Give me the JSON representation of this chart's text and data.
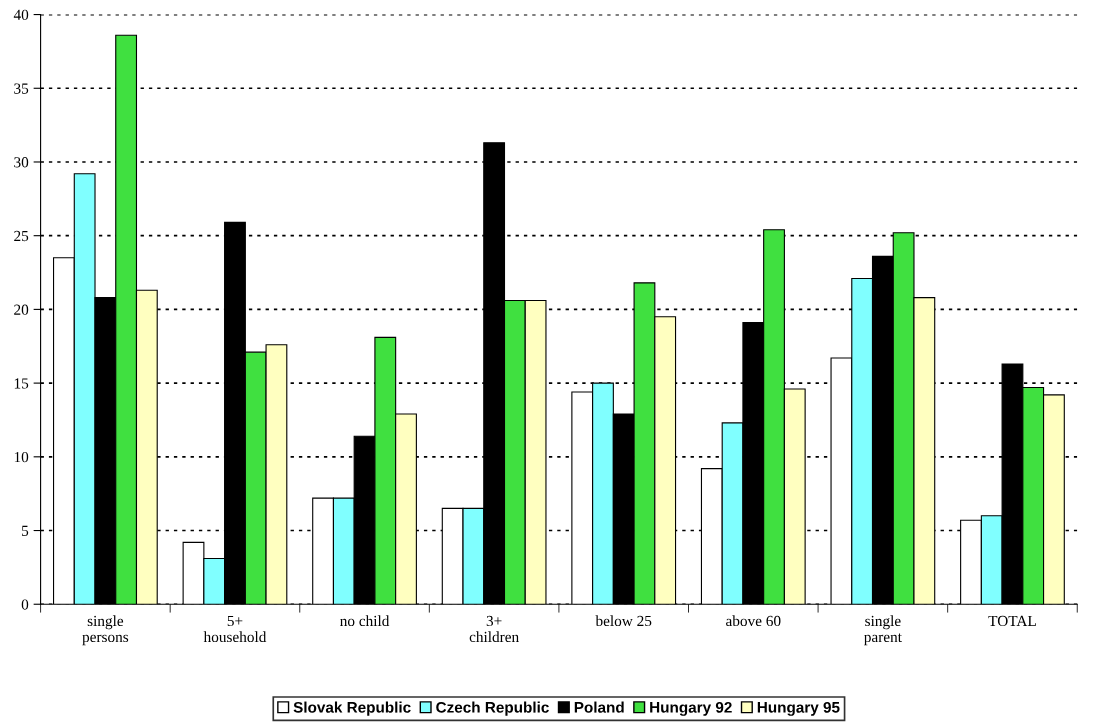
{
  "chart_data": {
    "type": "bar",
    "categories": [
      "single\npersons",
      "5+\nhousehold",
      "no child",
      "3+\nchildren",
      "below 25",
      "above 60",
      "single\nparent",
      "TOTAL"
    ],
    "series": [
      {
        "name": "Slovak Republic",
        "color": "#ffffff",
        "values": [
          23.5,
          4.2,
          7.2,
          6.5,
          14.4,
          9.2,
          16.7,
          5.7
        ]
      },
      {
        "name": "Czech Republic",
        "color": "#80ffff",
        "values": [
          29.2,
          3.1,
          7.2,
          6.5,
          15.0,
          12.3,
          22.1,
          6.0
        ]
      },
      {
        "name": "Poland",
        "color": "#000000",
        "values": [
          20.8,
          25.9,
          11.4,
          31.3,
          12.9,
          19.1,
          23.6,
          16.3
        ]
      },
      {
        "name": "Hungary 92",
        "color": "#40e040",
        "values": [
          38.6,
          17.1,
          18.1,
          20.6,
          21.8,
          25.4,
          25.2,
          14.7
        ]
      },
      {
        "name": "Hungary 95",
        "color": "#ffffc0",
        "values": [
          21.3,
          17.6,
          12.9,
          20.6,
          19.5,
          14.6,
          20.8,
          14.2
        ]
      }
    ],
    "ylim": [
      0,
      40
    ],
    "yticks": [
      0,
      5,
      10,
      15,
      20,
      25,
      30,
      35,
      40
    ],
    "grid": "y",
    "legend": "bottom"
  }
}
